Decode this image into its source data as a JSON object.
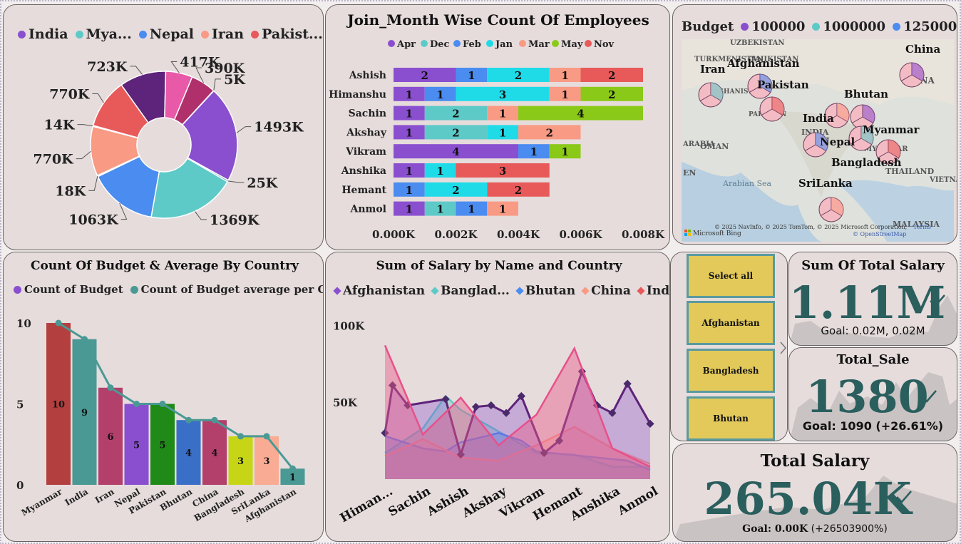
{
  "pie_card": {
    "legend": [
      "India",
      "Mya...",
      "Nepal",
      "Iran",
      "Pakist..."
    ],
    "legend_colors": [
      "#8a4fcf",
      "#5ecac8",
      "#4a8cf0",
      "#f99a84",
      "#e85a5a"
    ]
  },
  "join_card": {
    "title": "Join_Month Wise Count Of Employees",
    "legend": [
      "Apr",
      "Dec",
      "Feb",
      "Jan",
      "Mar",
      "May",
      "Nov"
    ],
    "legend_colors": [
      "#8a4fcf",
      "#5ecac8",
      "#4a8cf0",
      "#1fdbe8",
      "#f99a84",
      "#8ac917",
      "#e85a5a"
    ]
  },
  "map_card": {
    "legend_title": "Budget",
    "legend": [
      "100000",
      "1000000",
      "125000"
    ],
    "legend_colors": [
      "#8a4fcf",
      "#5ecac8",
      "#4a8cf0"
    ],
    "country_labels": [
      "China",
      "Iran",
      "Afghanistan",
      "Pakistan",
      "Bhutan",
      "India",
      "Myanmar",
      "Nepal",
      "Bangladesh",
      "SriLanka"
    ],
    "base_labels": [
      "UZBEKISTAN",
      "TURKMENISTAN",
      "TAJIKISTAN",
      "AFGHANISTAN",
      "PAKISTAN",
      "OMAN",
      "Arabian Sea",
      "THAILAND",
      "MALAYSIA",
      "MYANMAR",
      "CHINA",
      "INDIA",
      "VIETNA",
      "ARABIA",
      "EN"
    ],
    "attribution": "© 2025 NavInfo, © 2025 TomTom, © 2025 Microsoft Corporation,",
    "terms": "Terms",
    "osm": "© OpenStreetMap",
    "brand": "Microsoft Bing"
  },
  "budget_card": {
    "title": "Count Of Budget & Average By Country",
    "legend": [
      "Count of Budget",
      "Count of Budget average per Cou..."
    ],
    "legend_colors": [
      "#8a4fcf",
      "#4a9994"
    ]
  },
  "salary_card": {
    "title": "Sum of Salary by Name and Country",
    "legend": [
      "Afghanistan",
      "Banglad...",
      "Bhutan",
      "China",
      "India"
    ],
    "legend_colors": [
      "#8a4fcf",
      "#5ecac8",
      "#4a8cf0",
      "#f99a84",
      "#e85a5a"
    ]
  },
  "slicer": {
    "items": [
      "Select all",
      "Afghanistan",
      "Bangladesh",
      "Bhutan"
    ]
  },
  "kpi_sum_total_salary": {
    "title": "Sum Of Total Salary",
    "value": "1.11M",
    "goal": "Goal: 0.02M, 0.02M"
  },
  "kpi_total_sale": {
    "title": "Total_Sale",
    "value": "1380",
    "goal": "Goal: 1090 (+26.61%)"
  },
  "kpi_total_salary": {
    "title": "Total Salary",
    "value": "265.04K",
    "goal_bold": "Goal: 0.00K",
    "goal_rest": " (+26503900%)"
  },
  "chart_data": [
    {
      "type": "pie",
      "variant": "donut",
      "labels": [
        "India",
        "Mya...",
        "Nepal",
        "Iran",
        "Pakist..."
      ],
      "slice_labels": [
        "723K",
        "417K",
        "390K",
        "5K",
        "1493K",
        "25K",
        "1369K",
        "1063K",
        "18K",
        "770K",
        "14K",
        "770K"
      ],
      "slice_values": [
        723,
        417,
        390,
        5,
        1493,
        25,
        1369,
        1063,
        18,
        770,
        14,
        770
      ],
      "slice_colors": [
        "#5e237a",
        "#e85aa8",
        "#b0306b",
        "#b683f2",
        "#8a4fcf",
        "#3e9490",
        "#5ecac8",
        "#4a8cf0",
        "#3a5aa8",
        "#f99a84",
        "#b33f5a",
        "#e85a5a"
      ]
    },
    {
      "type": "bar",
      "orientation": "horizontal",
      "stacked": true,
      "title": "Join_Month Wise Count Of Employees",
      "categories": [
        "Ashish",
        "Himanshu",
        "Sachin",
        "Akshay",
        "Vikram",
        "Anshika",
        "Hemant",
        "Anmol"
      ],
      "series": [
        {
          "name": "Apr",
          "values": [
            2,
            1,
            1,
            1,
            4,
            1,
            0,
            1
          ]
        },
        {
          "name": "Dec",
          "values": [
            0,
            0,
            2,
            2,
            0,
            0,
            0,
            1
          ]
        },
        {
          "name": "Feb",
          "values": [
            1,
            1,
            0,
            0,
            1,
            0,
            1,
            1
          ]
        },
        {
          "name": "Jan",
          "values": [
            2,
            3,
            0,
            1,
            0,
            1,
            2,
            0
          ]
        },
        {
          "name": "Mar",
          "values": [
            1,
            1,
            1,
            2,
            0,
            0,
            0,
            1
          ]
        },
        {
          "name": "May",
          "values": [
            0,
            2,
            4,
            0,
            1,
            0,
            0,
            0
          ]
        },
        {
          "name": "Nov",
          "values": [
            2,
            0,
            0,
            0,
            0,
            3,
            2,
            0
          ]
        }
      ],
      "x_ticks": [
        "0.000K",
        "0.002K",
        "0.004K",
        "0.006K",
        "0.008K"
      ],
      "xlim": [
        0,
        8
      ]
    },
    {
      "type": "bar",
      "title": "Count Of Budget & Average By Country",
      "categories": [
        "Myanmar",
        "India",
        "Iran",
        "Nepal",
        "Pakistan",
        "Bhutan",
        "China",
        "Bangladesh",
        "SriLanka",
        "Afghanistan"
      ],
      "series": [
        {
          "name": "Count of Budget",
          "values": [
            10,
            9,
            6,
            5,
            5,
            4,
            4,
            3,
            3,
            1
          ]
        },
        {
          "name": "Count of Budget average per Cou...",
          "type": "line",
          "values": [
            10,
            9,
            6,
            5,
            5,
            4,
            4,
            3,
            3,
            1
          ]
        }
      ],
      "bar_colors": [
        "#b33f3f",
        "#4a9994",
        "#b33f6b",
        "#8a4fcf",
        "#1f8a17",
        "#3a6fc8",
        "#b33f6b",
        "#c6d617",
        "#f9ab94",
        "#4a9994"
      ],
      "y_ticks": [
        "0",
        "5",
        "10"
      ],
      "ylim": [
        0,
        10
      ]
    },
    {
      "type": "area",
      "title": "Sum of Salary by Name and Country",
      "categories": [
        "Himan...",
        "Sachin",
        "Ashish",
        "Akshay",
        "Vikram",
        "Hemant",
        "Anshika",
        "Anmol"
      ],
      "y_ticks": [
        "50K",
        "100K"
      ],
      "ylim": [
        0,
        115
      ],
      "series": [
        {
          "name": "Afghanistan",
          "values": [
            30,
            61,
            48,
            52,
            16,
            47,
            48,
            43,
            54,
            17,
            25,
            70,
            48,
            43,
            62,
            36
          ],
          "x": [
            0,
            0.2,
            0.6,
            1.6,
            2,
            2.4,
            2.8,
            3.2,
            3.6,
            4.2,
            4.6,
            5.2,
            5.6,
            6,
            6.4,
            7
          ]
        },
        {
          "name": "Banglad...",
          "values": [
            17,
            33,
            54,
            45,
            17,
            16,
            8,
            8
          ],
          "x": [
            0,
            1,
            1.6,
            2,
            4,
            5,
            6,
            7
          ]
        },
        {
          "name": "Bhutan",
          "values": [
            28,
            20,
            18,
            24,
            30,
            25,
            18,
            12,
            6
          ],
          "x": [
            0,
            1,
            1.6,
            2,
            3,
            3.6,
            4,
            6.4,
            7
          ]
        },
        {
          "name": "China",
          "values": [
            15,
            26,
            14,
            12,
            22,
            34,
            20,
            10
          ],
          "x": [
            0,
            1,
            2,
            3,
            4,
            5,
            6,
            7
          ]
        },
        {
          "name": "India",
          "values": [
            87,
            29,
            53,
            22,
            42,
            85,
            20,
            8
          ],
          "x": [
            0,
            1,
            2,
            3,
            4,
            5,
            6,
            7
          ]
        }
      ]
    }
  ]
}
